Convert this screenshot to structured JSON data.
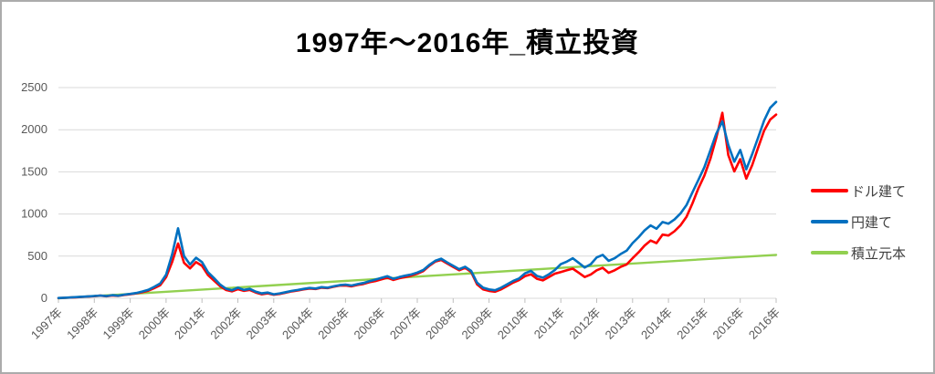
{
  "window": {
    "background": "#ffffff",
    "border_color": "#ababab"
  },
  "chart_data": {
    "type": "line",
    "title": "1997年～2016年_積立投資",
    "legend_position": "right",
    "grid": "horizontal",
    "grid_color": "#d9d9d9",
    "axis_text_color": "#595959",
    "x_axis": {
      "label_rotation_deg": -45,
      "tick_labels": [
        "1997年",
        "1998年",
        "1999年",
        "2000年",
        "2001年",
        "2002年",
        "2003年",
        "2004年",
        "2005年",
        "2006年",
        "2007年",
        "2008年",
        "2009年",
        "2010年",
        "2011年",
        "2012年",
        "2013年",
        "2014年",
        "2015年",
        "2016年",
        "2016年"
      ]
    },
    "y_axis": {
      "min": 0,
      "max": 2500,
      "step": 500,
      "ticks": [
        0,
        500,
        1000,
        1500,
        2000,
        2500
      ]
    },
    "x_range": [
      1997,
      2017
    ],
    "series": [
      {
        "id": "dollar",
        "name": "ドル建て",
        "color": "#ff0000",
        "width": 2.6,
        "x_start": 1997,
        "x_step": 0.1666667,
        "values": [
          2,
          5,
          9,
          12,
          16,
          21,
          25,
          31,
          24,
          34,
          28,
          40,
          48,
          58,
          73,
          90,
          120,
          155,
          250,
          430,
          650,
          420,
          355,
          430,
          385,
          275,
          210,
          145,
          100,
          82,
          108,
          88,
          98,
          68,
          48,
          58,
          42,
          52,
          66,
          82,
          92,
          106,
          116,
          110,
          126,
          121,
          136,
          150,
          152,
          142,
          158,
          170,
          190,
          205,
          225,
          245,
          218,
          238,
          252,
          268,
          292,
          322,
          385,
          435,
          455,
          412,
          372,
          332,
          362,
          312,
          165,
          105,
          88,
          78,
          105,
          145,
          185,
          215,
          262,
          285,
          232,
          212,
          252,
          292,
          312,
          332,
          352,
          302,
          252,
          282,
          332,
          362,
          302,
          332,
          372,
          402,
          475,
          545,
          625,
          685,
          655,
          755,
          745,
          795,
          865,
          965,
          1125,
          1305,
          1455,
          1655,
          1905,
          2200,
          1700,
          1505,
          1650,
          1420,
          1580,
          1790,
          1990,
          2120,
          2180
        ]
      },
      {
        "id": "yen",
        "name": "円建て",
        "color": "#0070c0",
        "width": 2.6,
        "x_start": 1997,
        "x_step": 0.1666667,
        "values": [
          3,
          6,
          10,
          14,
          18,
          23,
          27,
          33,
          26,
          37,
          30,
          43,
          52,
          63,
          80,
          100,
          135,
          175,
          280,
          520,
          830,
          500,
          400,
          480,
          430,
          310,
          240,
          165,
          115,
          95,
          125,
          100,
          112,
          78,
          58,
          68,
          48,
          58,
          72,
          88,
          98,
          112,
          122,
          116,
          132,
          126,
          142,
          156,
          162,
          152,
          168,
          182,
          202,
          222,
          242,
          262,
          232,
          252,
          268,
          282,
          305,
          335,
          395,
          445,
          470,
          425,
          385,
          345,
          375,
          325,
          185,
          125,
          105,
          95,
          125,
          165,
          205,
          235,
          295,
          325,
          265,
          245,
          285,
          335,
          405,
          435,
          475,
          420,
          365,
          405,
          485,
          515,
          445,
          475,
          525,
          565,
          655,
          725,
          805,
          865,
          825,
          905,
          885,
          935,
          1005,
          1105,
          1255,
          1405,
          1555,
          1755,
          1955,
          2100,
          1820,
          1620,
          1760,
          1530,
          1710,
          1910,
          2110,
          2260,
          2330
        ]
      },
      {
        "id": "principal",
        "name": "積立元本",
        "color": "#92d050",
        "width": 2.4,
        "x": [
          1997,
          2017
        ],
        "values": [
          0,
          515
        ]
      }
    ]
  }
}
